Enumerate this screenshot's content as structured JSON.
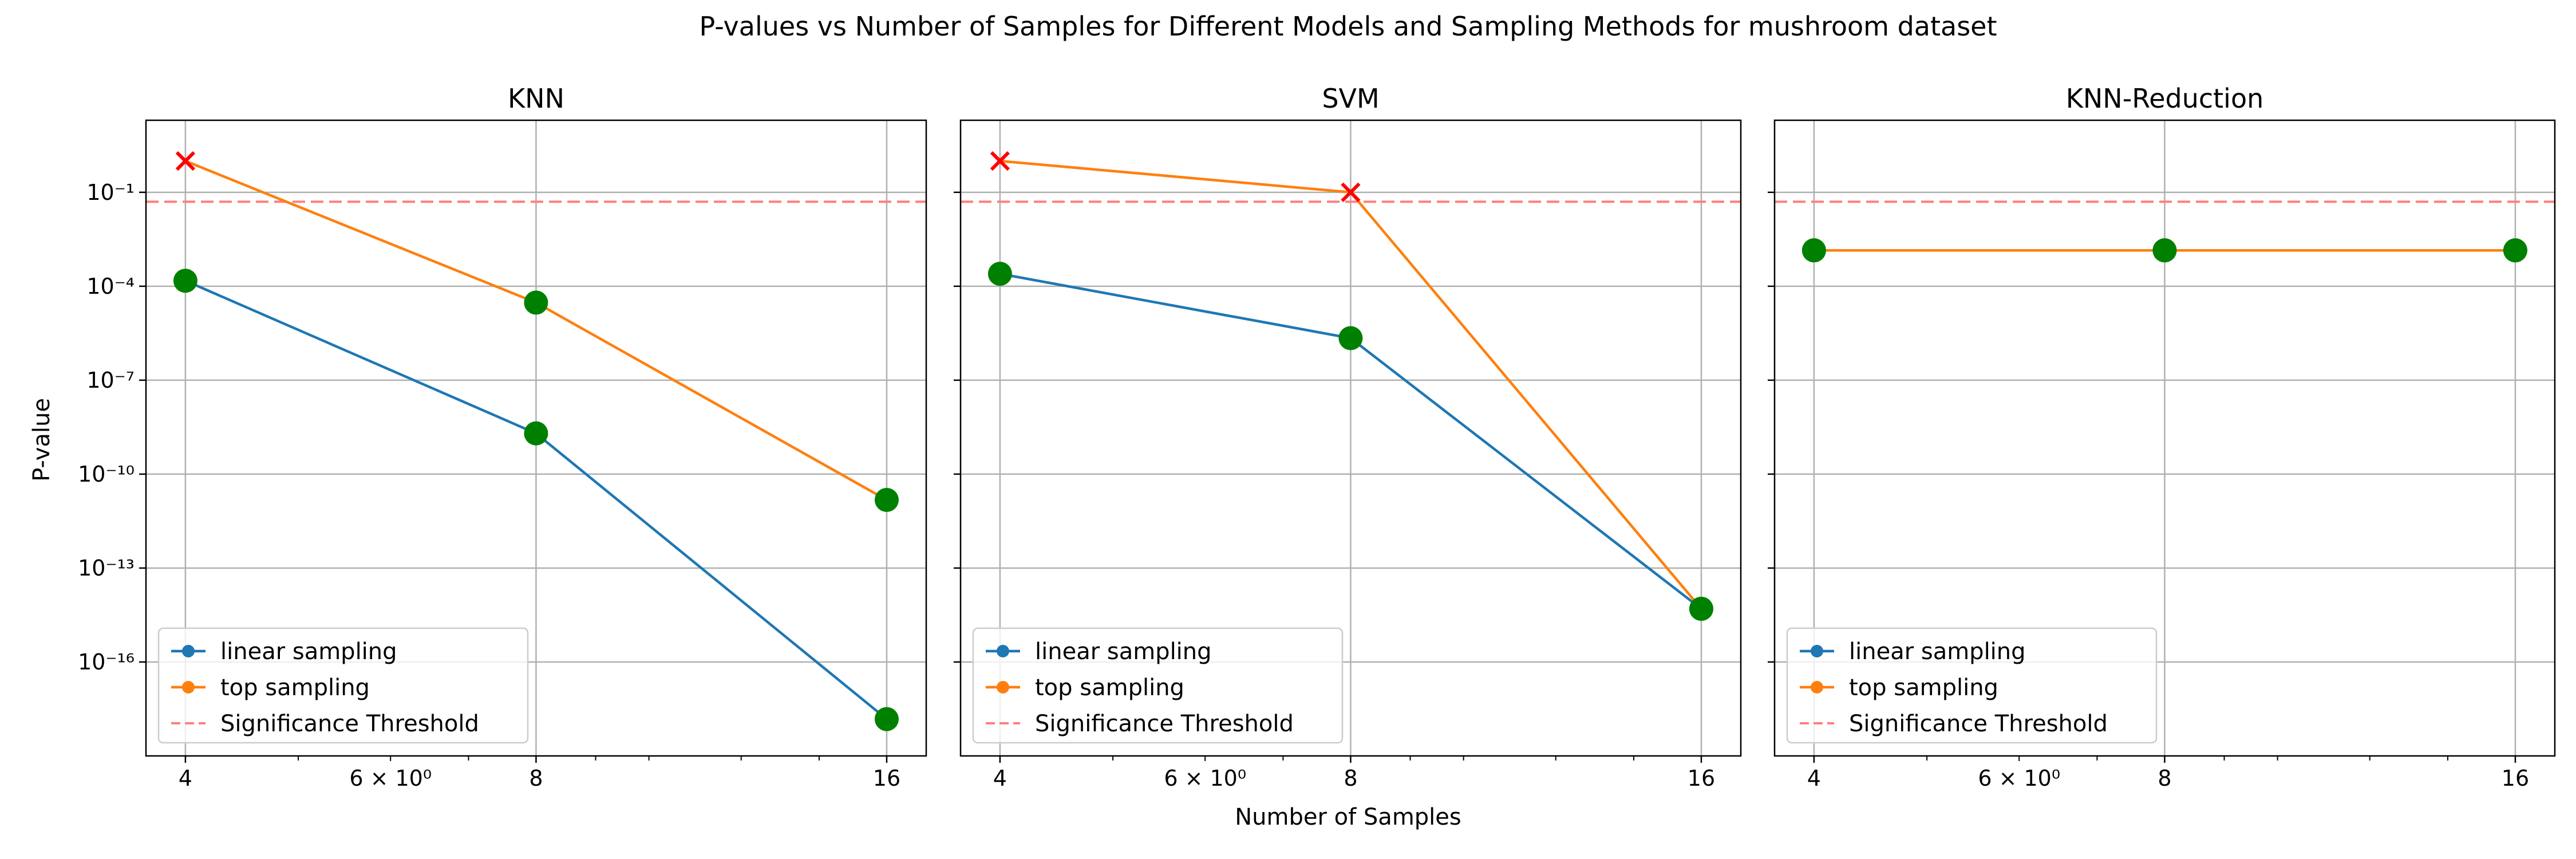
{
  "chart_data": {
    "type": "line",
    "title": "P-values vs Number of Samples for Different Models and Sampling Methods for mushroom dataset",
    "xlabel": "Number of Samples",
    "ylabel": "P-value",
    "x_scale": "log",
    "y_scale": "log",
    "xlim": [
      3.7,
      17.3
    ],
    "ylim": [
      1e-19,
      20
    ],
    "x_ticks": [
      {
        "value": 4,
        "label": "4"
      },
      {
        "value": 6,
        "label": "6 × 10⁰"
      },
      {
        "value": 8,
        "label": "8"
      },
      {
        "value": 16,
        "label": "16"
      }
    ],
    "y_ticks": [
      {
        "value": 1e-16,
        "label": "10⁻¹⁶"
      },
      {
        "value": 1e-13,
        "label": "10⁻¹³"
      },
      {
        "value": 1e-10,
        "label": "10⁻¹⁰"
      },
      {
        "value": 1e-07,
        "label": "10⁻⁷"
      },
      {
        "value": 0.0001,
        "label": "10⁻⁴"
      },
      {
        "value": 0.1,
        "label": "10⁻¹"
      }
    ],
    "grid": true,
    "legend_position": "lower-left",
    "threshold": 0.05,
    "markers": {
      "significant": "#008000",
      "not_significant": "#ff0000"
    },
    "series_styles": [
      {
        "name": "linear sampling",
        "color": "#1f77b4"
      },
      {
        "name": "top sampling",
        "color": "#ff7f0e"
      },
      {
        "name": "Significance Threshold",
        "color": "#ff7f7f"
      }
    ],
    "panels": [
      {
        "title": "KNN",
        "series": [
          {
            "name": "linear sampling",
            "x": [
              4,
              8,
              16
            ],
            "values": [
              0.00015,
              2e-09,
              1.5e-18
            ]
          },
          {
            "name": "top sampling",
            "x": [
              4,
              8,
              16
            ],
            "values": [
              1.0,
              3e-05,
              1.5e-11
            ]
          }
        ]
      },
      {
        "title": "SVM",
        "series": [
          {
            "name": "linear sampling",
            "x": [
              4,
              8,
              16
            ],
            "values": [
              0.00025,
              2.2e-06,
              5e-15
            ]
          },
          {
            "name": "top sampling",
            "x": [
              4,
              8,
              16
            ],
            "values": [
              1.0,
              0.1,
              5e-15
            ]
          }
        ]
      },
      {
        "title": "KNN-Reduction",
        "series": [
          {
            "name": "linear sampling",
            "x": [
              4,
              8,
              16
            ],
            "values": [
              0.0014,
              0.0014,
              0.0014
            ]
          },
          {
            "name": "top sampling",
            "x": [
              4,
              8,
              16
            ],
            "values": [
              0.0014,
              0.0014,
              0.0014
            ]
          }
        ]
      }
    ]
  }
}
